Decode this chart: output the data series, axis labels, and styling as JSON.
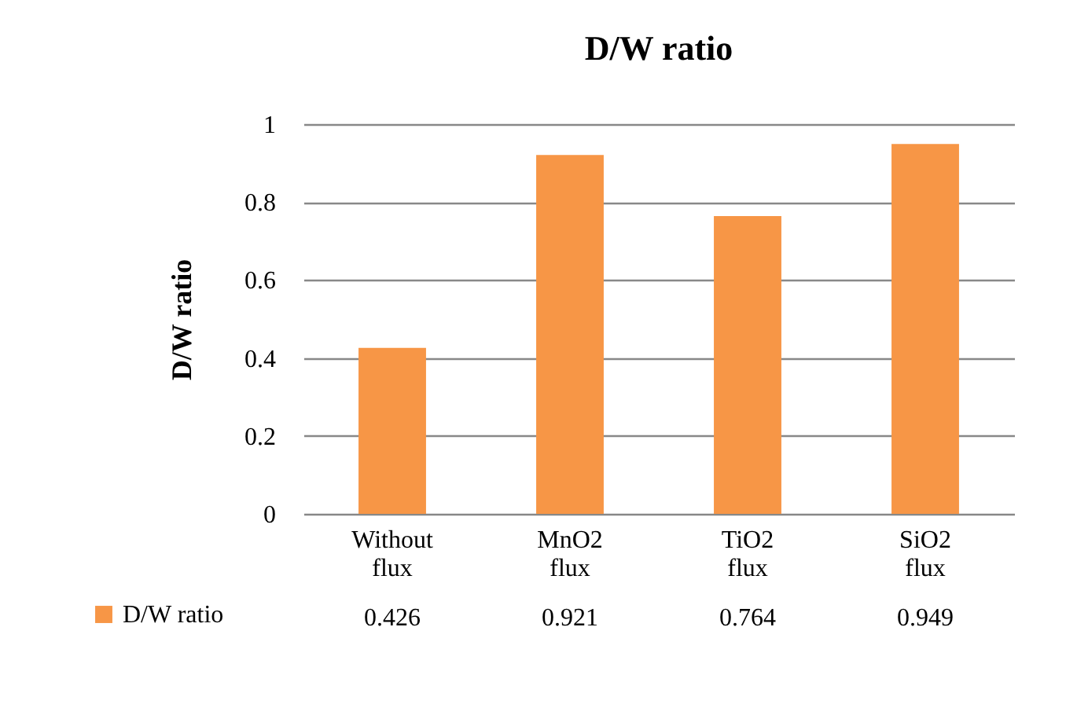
{
  "chart_data": {
    "type": "bar",
    "title": "D/W ratio",
    "ylabel": "D/W ratio",
    "categories": [
      "Without flux",
      "MnO2 flux",
      "TiO2 flux",
      "SiO2 flux"
    ],
    "series": [
      {
        "name": "D/W ratio",
        "color": "#f79646",
        "values": [
          0.426,
          0.921,
          0.764,
          0.949
        ]
      }
    ],
    "ylim": [
      0,
      1
    ],
    "yticks": [
      0,
      0.2,
      0.4,
      0.6,
      0.8,
      1
    ],
    "grid": "y",
    "data_labels": true,
    "legend": "bottom left"
  }
}
